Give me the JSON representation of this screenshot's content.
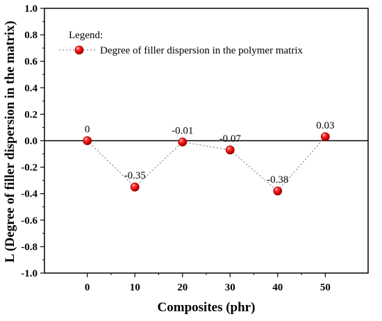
{
  "chart_data": {
    "type": "scatter",
    "xlabel": "Composites (phr)",
    "ylabel": "L (Degree of filler dispersion in the matrix)",
    "x": [
      0,
      10,
      20,
      30,
      40,
      50
    ],
    "x_ticks": [
      "0",
      "10",
      "20",
      "30",
      "40",
      "50"
    ],
    "y_ticks": [
      "-1.0",
      "-0.8",
      "-0.6",
      "-0.4",
      "-0.2",
      "0.0",
      "0.2",
      "0.4",
      "0.6",
      "0.8",
      "1.0"
    ],
    "xlim": [
      -9,
      59
    ],
    "ylim": [
      -1.0,
      1.0
    ],
    "series": [
      {
        "name": "Degree of filler dispersion in the polymer matrix",
        "values": [
          0,
          -0.35,
          -0.01,
          -0.07,
          -0.38,
          0.03
        ],
        "labels": [
          "0",
          "-0.35",
          "-0.01",
          "-0.07",
          "-0.38",
          "0.03"
        ],
        "color": "#ff1a1a",
        "line_style": "dotted"
      }
    ],
    "legend": {
      "title": "Legend:",
      "position": "top-left"
    },
    "reference_line": {
      "y": 0,
      "color": "#000000"
    },
    "grid": false
  }
}
